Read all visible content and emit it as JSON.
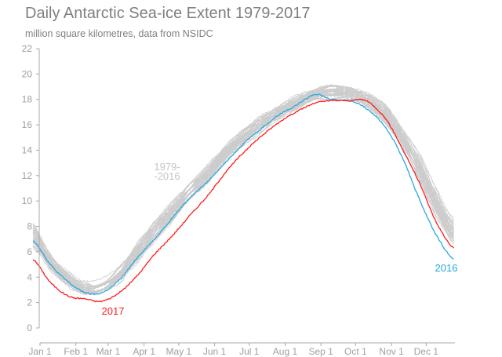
{
  "chart_data": {
    "type": "line",
    "title": "Daily Antarctic Sea-ice Extent 1979-2017",
    "subtitle": "million square kilometres, data from NSIDC",
    "xlabel": "",
    "ylabel": "",
    "ylim": [
      0,
      22
    ],
    "xlim": [
      0,
      365
    ],
    "y_ticks": [
      0,
      2,
      4,
      6,
      8,
      10,
      12,
      14,
      16,
      18,
      20,
      22
    ],
    "x_ticks": [
      {
        "day": 0,
        "label": "Jan 1"
      },
      {
        "day": 31,
        "label": "Feb 1"
      },
      {
        "day": 59,
        "label": "Mar 1"
      },
      {
        "day": 90,
        "label": "Apr 1"
      },
      {
        "day": 120,
        "label": "May 1"
      },
      {
        "day": 151,
        "label": "Jun 1"
      },
      {
        "day": 181,
        "label": "Jul 1"
      },
      {
        "day": 212,
        "label": "Aug 1"
      },
      {
        "day": 243,
        "label": "Sep 1"
      },
      {
        "day": 273,
        "label": "Oct 1"
      },
      {
        "day": 304,
        "label": "Nov 1"
      },
      {
        "day": 334,
        "label": "Dec 1"
      }
    ],
    "grid": false,
    "days": [
      0,
      15,
      31,
      45,
      59,
      75,
      91,
      105,
      121,
      135,
      152,
      166,
      182,
      196,
      213,
      227,
      244,
      258,
      274,
      288,
      305,
      319,
      335,
      349,
      364
    ],
    "background_years": {
      "label_line1": "1979-",
      "label_line2": "-2016",
      "color": "#cccccc",
      "count": 38,
      "mean": [
        7.3,
        5.2,
        3.8,
        3.1,
        3.2,
        4.2,
        6.0,
        7.6,
        9.2,
        10.7,
        12.2,
        13.6,
        15.0,
        16.0,
        17.0,
        17.7,
        18.3,
        18.6,
        18.5,
        18.0,
        16.8,
        15.0,
        12.5,
        9.8,
        7.6
      ],
      "spread": [
        1.0,
        0.8,
        0.6,
        0.5,
        0.6,
        0.7,
        0.8,
        0.8,
        0.8,
        0.8,
        0.8,
        0.7,
        0.7,
        0.7,
        0.6,
        0.6,
        0.6,
        0.6,
        0.6,
        0.6,
        0.7,
        0.8,
        1.0,
        1.1,
        1.1
      ]
    },
    "series": [
      {
        "name": "2016",
        "color": "#29a8e0",
        "values": [
          6.9,
          5.0,
          3.6,
          2.8,
          2.75,
          3.8,
          5.6,
          7.0,
          8.7,
          10.2,
          11.6,
          13.0,
          14.5,
          15.6,
          16.8,
          17.5,
          18.4,
          18.0,
          17.9,
          17.3,
          15.8,
          13.5,
          10.0,
          7.3,
          5.4
        ]
      },
      {
        "name": "2017",
        "color": "#ff1a1a",
        "values": [
          5.4,
          3.6,
          2.5,
          2.3,
          2.1,
          2.8,
          4.2,
          5.8,
          7.3,
          8.8,
          10.5,
          12.2,
          13.8,
          15.0,
          16.2,
          17.0,
          17.7,
          17.9,
          17.9,
          17.9,
          16.5,
          14.2,
          11.3,
          8.3,
          6.3
        ]
      }
    ]
  }
}
